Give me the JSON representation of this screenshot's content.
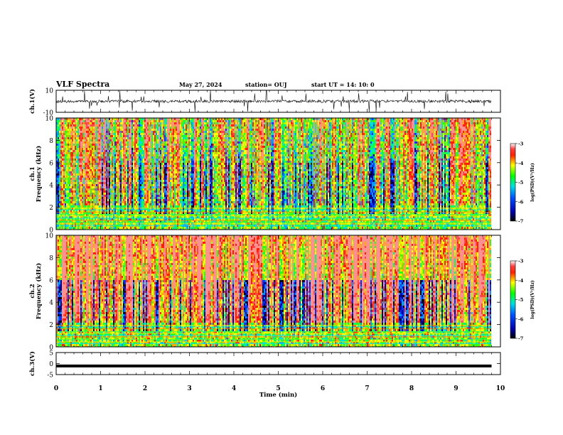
{
  "header": {
    "title": "VLF Spectra",
    "date": "May 27, 2024",
    "station": "station= OUJ",
    "start": "start  UT  =   14: 10: 0"
  },
  "chart_data": [
    {
      "type": "line",
      "panel": "ch1-waveform",
      "ylabel": "ch.1(V)",
      "ylim": [
        -10,
        10
      ],
      "yticks": [
        "10",
        "-10"
      ],
      "description_values": {
        "baseline": 0,
        "peak_range": [
          -10,
          10
        ]
      }
    },
    {
      "type": "heatmap",
      "panel": "ch1-spectrogram",
      "ylabel": "ch.1\nFrequency (kHz)",
      "ylabel_line1": "ch.1",
      "ylabel_line2": "Frequency (kHz)",
      "ylim": [
        0,
        10
      ],
      "yticks": [
        "0",
        "2",
        "4",
        "6",
        "8",
        "10"
      ],
      "colorbar": {
        "label": "log(PSD)(V²/Hz)",
        "range": [
          -7,
          -3
        ],
        "ticks": [
          "-3",
          "-4",
          "-5",
          "-6",
          "-7"
        ]
      }
    },
    {
      "type": "heatmap",
      "panel": "ch2-spectrogram",
      "ylabel_line1": "ch.2",
      "ylabel_line2": "Frequency (kHz)",
      "ylim": [
        0,
        10
      ],
      "yticks": [
        "0",
        "2",
        "4",
        "6",
        "8",
        "10"
      ],
      "colorbar": {
        "label": "log(PSD)(V²/Hz)",
        "range": [
          -7,
          -3
        ],
        "ticks": [
          "-3",
          "-4",
          "-5",
          "-6",
          "-7"
        ]
      }
    },
    {
      "type": "line",
      "panel": "ch3-waveform",
      "ylabel": "ch.3(V)",
      "ylim": [
        -5,
        5
      ],
      "yticks": [
        "5",
        "0",
        "-5"
      ],
      "series": [
        {
          "values": [
            -1.1,
            -1.1
          ]
        }
      ],
      "x": [
        0,
        9.8
      ]
    }
  ],
  "x_axis": {
    "label": "Time (min)",
    "range": [
      0,
      10
    ],
    "ticks": [
      "0",
      "1",
      "2",
      "3",
      "4",
      "5",
      "6",
      "7",
      "8",
      "9",
      "10"
    ]
  },
  "colors": {
    "high": "#ff1a1a",
    "mid": "#ffd700",
    "low_mid": "#1aff1a",
    "low": "#0000cc",
    "lowest": "#000000"
  }
}
